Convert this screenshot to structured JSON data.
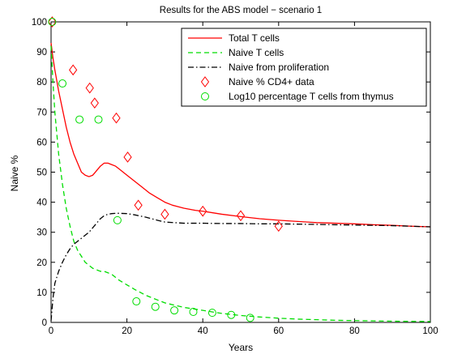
{
  "chart_data": {
    "type": "line",
    "title": "Results for the ABS model − scenario 1",
    "xlabel": "Years",
    "ylabel": "Naive %",
    "xlim": [
      0,
      100
    ],
    "ylim": [
      0,
      100
    ],
    "xticks": [
      "0",
      "20",
      "40",
      "60",
      "80",
      "100"
    ],
    "yticks": [
      "0",
      "10",
      "20",
      "30",
      "40",
      "50",
      "60",
      "70",
      "80",
      "90",
      "100"
    ],
    "legend_position": "top-right",
    "grid": false,
    "series": [
      {
        "name": "Total T cells",
        "kind": "line",
        "style": "solid",
        "color": "#ff0000",
        "x": [
          0,
          0.5,
          1,
          2,
          3,
          4,
          5,
          6,
          7,
          8,
          9,
          10,
          11,
          12,
          13,
          14,
          15,
          16,
          17,
          18,
          19,
          20,
          22,
          24,
          26,
          28,
          30,
          32,
          35,
          38,
          40,
          45,
          50,
          55,
          60,
          65,
          70,
          75,
          80,
          85,
          90,
          95,
          100
        ],
        "y": [
          93,
          88,
          84,
          77,
          71,
          65,
          60,
          56,
          53,
          50,
          49,
          48.5,
          49,
          50.5,
          52,
          53,
          53,
          52.5,
          52,
          51,
          50,
          49,
          47,
          45,
          43,
          41.5,
          40,
          39,
          38,
          37.3,
          37,
          36,
          35.2,
          34.5,
          34,
          33.6,
          33.2,
          33,
          32.8,
          32.5,
          32.3,
          32,
          31.8
        ]
      },
      {
        "name": "Naive T cells",
        "kind": "line",
        "style": "dashed",
        "color": "#00dd00",
        "x": [
          0,
          0.5,
          1,
          2,
          3,
          4,
          5,
          6,
          7,
          8,
          9,
          10,
          11,
          12,
          13,
          14,
          15,
          16,
          17,
          18,
          20,
          22,
          25,
          28,
          30,
          35,
          40,
          45,
          50,
          55,
          60,
          65,
          70,
          75,
          80,
          85,
          90,
          95,
          100
        ],
        "y": [
          92,
          80,
          70,
          56,
          46,
          38,
          32,
          27,
          24,
          22,
          20,
          19,
          18,
          17.5,
          17,
          17,
          16.5,
          16,
          15,
          14,
          12.5,
          11,
          9,
          7.5,
          6.5,
          5,
          4,
          3,
          2.3,
          1.8,
          1.4,
          1.1,
          0.9,
          0.7,
          0.6,
          0.5,
          0.4,
          0.35,
          0.3
        ]
      },
      {
        "name": "Naive from proliferation",
        "kind": "line",
        "style": "dashdot",
        "color": "#000000",
        "x": [
          0,
          0.5,
          1,
          2,
          3,
          4,
          5,
          6,
          7,
          8,
          9,
          10,
          11,
          12,
          13,
          14,
          15,
          16,
          17,
          18,
          20,
          22,
          25,
          28,
          30,
          35,
          40,
          45,
          50,
          55,
          60,
          65,
          70,
          75,
          80,
          85,
          90,
          95,
          100
        ],
        "y": [
          0.5,
          8,
          13,
          17,
          20,
          22.5,
          24.5,
          26,
          27,
          28,
          29,
          30,
          31.5,
          33,
          34.5,
          35.5,
          36,
          36.2,
          36.3,
          36.3,
          36.2,
          35.8,
          35,
          34,
          33.4,
          33,
          33,
          32.9,
          32.9,
          32.8,
          32.8,
          32.7,
          32.6,
          32.5,
          32.4,
          32.3,
          32.2,
          32,
          31.8
        ]
      },
      {
        "name": "Naive % CD4+ data",
        "kind": "points",
        "marker": "diamond",
        "color": "#ff0000",
        "x": [
          0.3,
          5.8,
          10.2,
          11.5,
          17.2,
          20.2,
          23,
          30,
          40,
          50,
          60
        ],
        "y": [
          100,
          84,
          78,
          73,
          68,
          55,
          39,
          36,
          37,
          35.5,
          32
        ]
      },
      {
        "name": "Log10 percentage T cells from thymus",
        "kind": "points",
        "marker": "circle",
        "color": "#00dd00",
        "x": [
          0.3,
          3,
          7.5,
          12.5,
          17.5,
          22.5,
          27.5,
          32.5,
          37.5,
          42.5,
          47.5,
          52.5
        ],
        "y": [
          100,
          79.5,
          67.5,
          67.5,
          34,
          7,
          5.2,
          4,
          3.5,
          3.2,
          2.5,
          1.5
        ]
      }
    ]
  }
}
